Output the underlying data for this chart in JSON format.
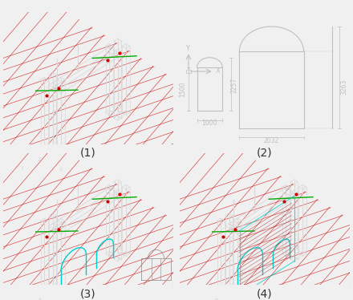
{
  "background_color": "#f0f0f0",
  "panel_bg": "#000000",
  "panel_labels": [
    "(1)",
    "(2)",
    "(3)",
    "(4)"
  ],
  "label_fontsize": 10,
  "label_color": "#333333",
  "white_line": "#d8d8d8",
  "red_line": "#cc0000",
  "green_line": "#00aa00",
  "cyan_line": "#00cccc",
  "dim_color": "#c0c0c0",
  "axis_color": "#aaaaaa"
}
